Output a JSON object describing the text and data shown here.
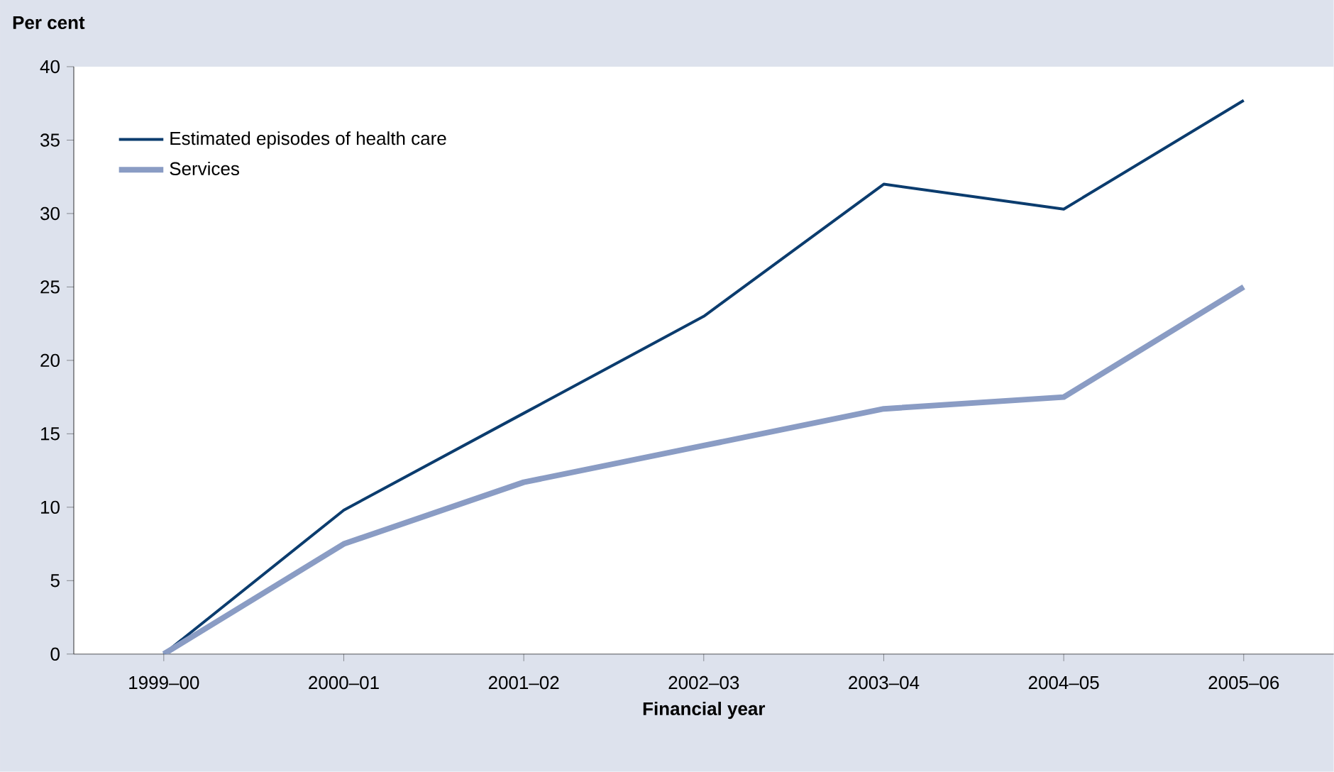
{
  "chart_data": {
    "type": "line",
    "ylabel": "Per cent",
    "xlabel": "Financial year",
    "categories": [
      "1999–00",
      "2000–01",
      "2001–02",
      "2002–03",
      "2003–04",
      "2004–05",
      "2005–06"
    ],
    "series": [
      {
        "name": "Estimated episodes of health care",
        "color": "#0b3c6e",
        "values": [
          0,
          9.8,
          16.4,
          23,
          32,
          30.3,
          37.7
        ]
      },
      {
        "name": "Services",
        "color": "#8a9cc4",
        "values": [
          0,
          7.5,
          11.7,
          14.2,
          16.7,
          17.5,
          25
        ]
      }
    ],
    "ylim": [
      0,
      40
    ],
    "yticks": [
      0,
      5,
      10,
      15,
      20,
      25,
      30,
      35,
      40
    ],
    "legend": "top left",
    "grid": false,
    "marker": "none",
    "line_style": "solid"
  }
}
